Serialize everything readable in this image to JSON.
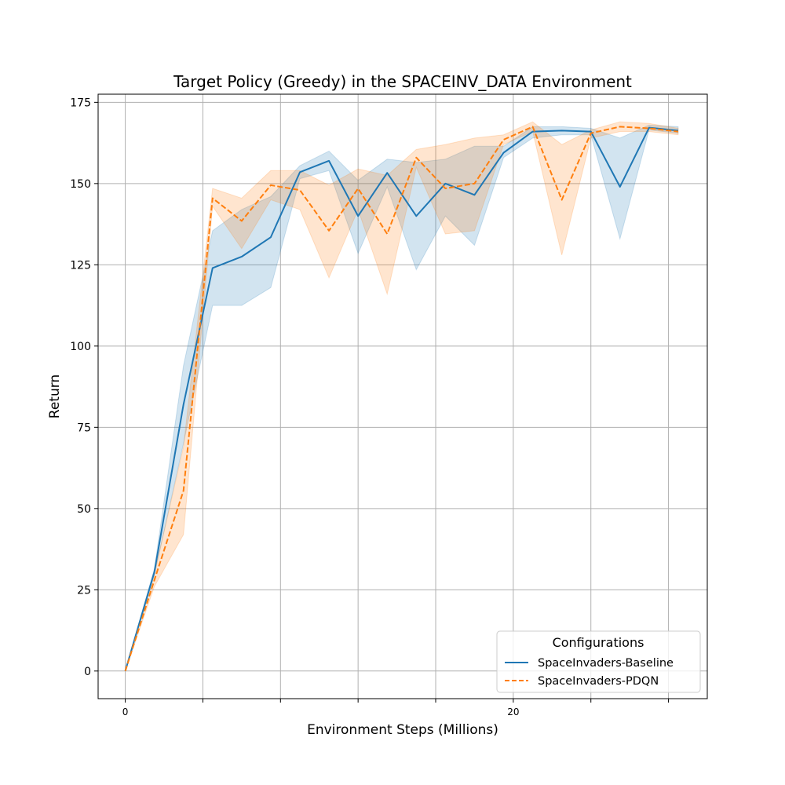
{
  "chart_data": {
    "type": "line",
    "title": "Target Policy (Greedy) in the SPACEINV_DATA Environment",
    "xlabel": "Environment Steps (Millions)",
    "ylabel": "Return",
    "xlim": [
      -1.4,
      30.0
    ],
    "ylim": [
      -8.5,
      177.5
    ],
    "x_ticks": [
      0,
      4,
      8,
      12,
      16,
      20,
      24,
      28
    ],
    "x_tick_labels": [
      "0",
      "",
      "",
      "",
      "",
      "20",
      "",
      ""
    ],
    "y_ticks": [
      0,
      25,
      50,
      75,
      100,
      125,
      150,
      175
    ],
    "y_tick_labels": [
      "0",
      "25",
      "50",
      "75",
      "100",
      "125",
      "150",
      "175"
    ],
    "grid": true,
    "legend": {
      "title": "Configurations",
      "placement": "lower-right"
    },
    "x": [
      0,
      1.5,
      3,
      4.5,
      6,
      7.5,
      9,
      10.5,
      12,
      13.5,
      15,
      16.5,
      18,
      19.5,
      21,
      22.5,
      24,
      25.5,
      27,
      28.5
    ],
    "series": [
      {
        "name": "SpaceInvaders-Baseline",
        "color": "#1f77b4",
        "dash": "solid",
        "values": [
          0,
          30.5,
          82,
          124,
          127.5,
          133.5,
          153.5,
          157,
          140,
          153.3,
          140,
          150,
          146.5,
          159.5,
          166,
          166.3,
          166,
          149,
          167.2,
          166.3
        ],
        "lower": [
          0,
          29.5,
          70,
          112.5,
          112.5,
          118,
          151.5,
          154,
          128.5,
          149,
          123.5,
          140,
          131,
          158,
          164,
          165,
          165,
          133,
          166.5,
          165.5
        ],
        "upper": [
          0,
          31.5,
          94,
          135.5,
          142,
          146,
          155.5,
          160,
          151,
          157.5,
          156.5,
          157.5,
          161.5,
          161.5,
          167.5,
          167.5,
          167,
          164,
          168,
          167.5
        ]
      },
      {
        "name": "SpaceInvaders-PDQN",
        "color": "#ff7f0e",
        "dash": "dashed",
        "values": [
          0,
          28,
          55.5,
          145.5,
          138.5,
          149.5,
          148,
          135.5,
          148.5,
          134.5,
          158,
          148.5,
          150,
          163.5,
          167.5,
          145,
          165.5,
          167.5,
          167,
          166
        ],
        "lower": [
          0,
          26,
          42,
          143,
          130,
          145,
          142,
          121,
          142,
          116,
          155,
          134.5,
          135.5,
          162,
          166,
          128,
          164,
          166,
          166,
          165
        ],
        "upper": [
          0,
          30,
          69,
          148.5,
          145.5,
          154,
          154,
          149.5,
          154.5,
          152.5,
          160.5,
          162,
          164,
          165,
          169,
          162,
          166.5,
          169,
          168.5,
          167
        ]
      }
    ]
  }
}
